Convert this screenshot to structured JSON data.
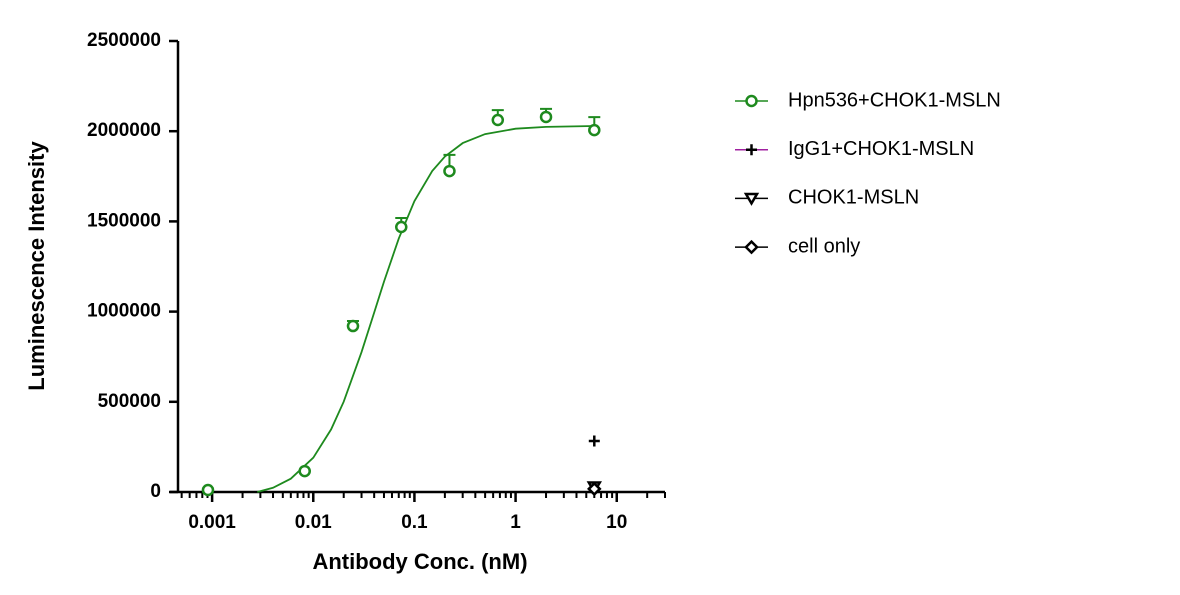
{
  "chart_data": {
    "type": "scatter",
    "x_label": "Antibody Conc. (nM)",
    "y_label": "Luminescence Intensity",
    "xscale": "log",
    "xlim": [
      0.00046,
      30
    ],
    "xticks": [
      0.001,
      0.01,
      0.1,
      1,
      10
    ],
    "ylim": [
      0,
      2500000
    ],
    "yticks": [
      0,
      500000,
      1000000,
      1500000,
      2000000,
      2500000
    ],
    "grid": false,
    "legend": "right",
    "series": [
      {
        "name": "Hpn536+CHOK1-MSLN",
        "color": "#1e8a1e",
        "marker": "circle",
        "x": [
          0.00091,
          0.00823,
          0.0247,
          0.0741,
          0.222,
          0.667,
          2,
          6
        ],
        "values": [
          11000,
          116000,
          920000,
          1469000,
          1779000,
          2062000,
          2079000,
          2006000
        ],
        "errors": [
          8000,
          0,
          28000,
          50000,
          90000,
          55000,
          45000,
          72000
        ],
        "fit": {
          "x": [
            0.0028,
            0.004,
            0.006,
            0.01,
            0.015,
            0.02,
            0.03,
            0.04,
            0.05,
            0.07,
            0.1,
            0.15,
            0.2,
            0.3,
            0.5,
            1,
            2,
            6
          ],
          "values": [
            0,
            23500,
            73700,
            190000,
            346900,
            500500,
            775000,
            995000,
            1166300,
            1405500,
            1612000,
            1779500,
            1860000,
            1933900,
            1984000,
            2013600,
            2024000,
            2029000
          ]
        }
      },
      {
        "name": "IgG1+CHOK1-MSLN",
        "color": "#000000",
        "line_color": "#a020a0",
        "marker": "plus",
        "x": [
          6
        ],
        "values": [
          283000
        ]
      },
      {
        "name": "CHOK1-MSLN",
        "color": "#000000",
        "line_color": "#000000",
        "marker": "triangle-down",
        "x": [
          6
        ],
        "values": [
          28000
        ]
      },
      {
        "name": "cell only",
        "color": "#000000",
        "line_color": "#000000",
        "marker": "diamond",
        "x": [
          6
        ],
        "values": [
          17000
        ]
      }
    ]
  }
}
